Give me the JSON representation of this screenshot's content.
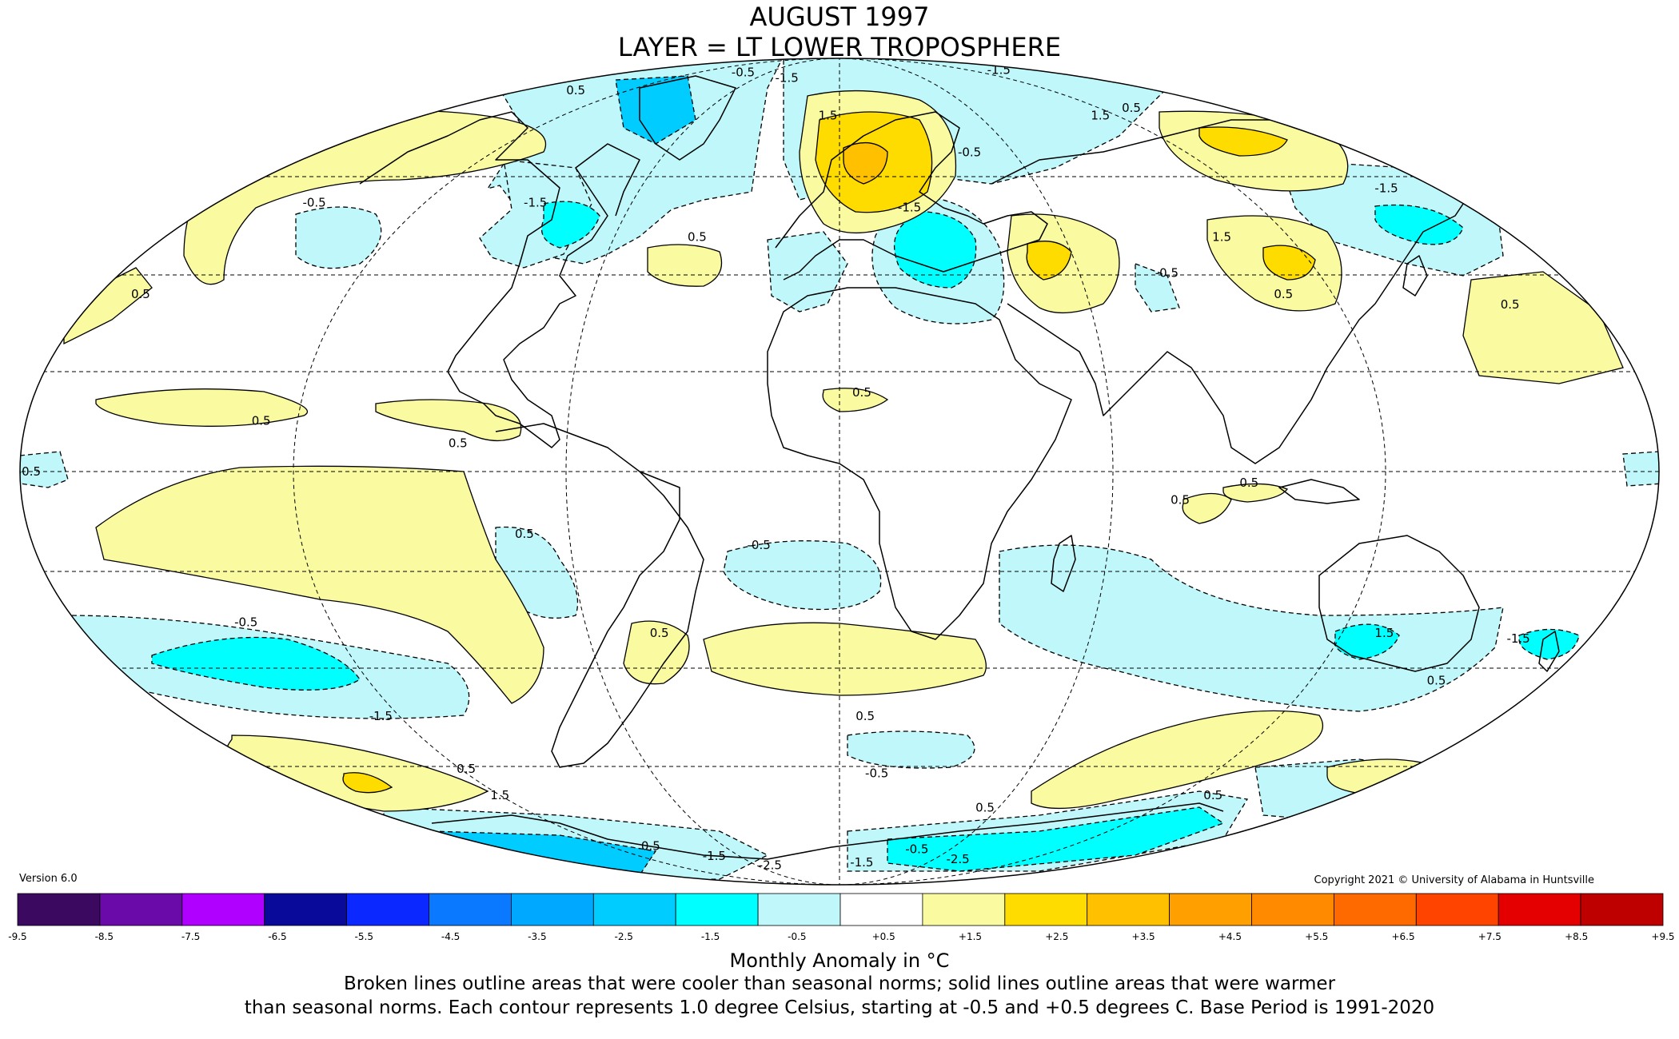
{
  "title": {
    "line1": "AUGUST 1997",
    "line2": "LAYER = LT LOWER TROPOSPHERE"
  },
  "version": "Version 6.0",
  "copyright": "Copyright 2021 © University of Alabama in Huntsville",
  "legend": {
    "units_label": "Monthly Anomaly in °C",
    "description_line1": "Broken lines outline areas that were cooler than seasonal norms; solid lines outline areas that were warmer",
    "description_line2": "than seasonal norms. Each contour represents 1.0 degree Celsius, starting at -0.5 and +0.5 degrees C. Base Period is 1991-2020",
    "ticks": [
      "-9.5",
      "-8.5",
      "-7.5",
      "-6.5",
      "-5.5",
      "-4.5",
      "-3.5",
      "-2.5",
      "-1.5",
      "-0.5",
      "+0.5",
      "+1.5",
      "+2.5",
      "+3.5",
      "+4.5",
      "+5.5",
      "+6.5",
      "+7.5",
      "+8.5",
      "+9.5"
    ],
    "colors": [
      "#3b0a60",
      "#6a0aa8",
      "#b000ff",
      "#0a0a9a",
      "#0a28ff",
      "#0a78ff",
      "#00a8ff",
      "#00ccff",
      "#00ffff",
      "#bff7fa",
      "#ffffff",
      "#fafaa0",
      "#ffdc00",
      "#ffc000",
      "#ffa000",
      "#ff8a00",
      "#ff6a00",
      "#ff4400",
      "#e40000",
      "#bf0000"
    ]
  },
  "map": {
    "contour_labels": [
      {
        "text": "0.5",
        "lon": -150,
        "lat": 77
      },
      {
        "text": "-0.5",
        "lon": -82,
        "lat": 83
      },
      {
        "text": "-1.5",
        "lon": -38,
        "lat": 81
      },
      {
        "text": "1.5",
        "lon": -5,
        "lat": 70
      },
      {
        "text": "-1.5",
        "lon": 150,
        "lat": 84
      },
      {
        "text": "0.5",
        "lon": 135,
        "lat": 72
      },
      {
        "text": "1.5",
        "lon": 113,
        "lat": 70
      },
      {
        "text": "-0.5",
        "lon": 45,
        "lat": 61
      },
      {
        "text": "-0.5",
        "lon": -152,
        "lat": 50
      },
      {
        "text": "-1.5",
        "lon": -88,
        "lat": 50
      },
      {
        "text": "-1.5",
        "lon": 165,
        "lat": 53
      },
      {
        "text": "0.5",
        "lon": -38,
        "lat": 43
      },
      {
        "text": "-1.5",
        "lon": 20,
        "lat": 49
      },
      {
        "text": "1.5",
        "lon": 102,
        "lat": 43
      },
      {
        "text": "0.5",
        "lon": 108,
        "lat": 32
      },
      {
        "text": "-0.5",
        "lon": 82,
        "lat": 36
      },
      {
        "text": "0.5",
        "lon": 161,
        "lat": 30
      },
      {
        "text": "0.5",
        "lon": -170,
        "lat": 32
      },
      {
        "text": "0.5",
        "lon": -128,
        "lat": 9
      },
      {
        "text": "0.5",
        "lon": -84,
        "lat": 5
      },
      {
        "text": "0.5",
        "lon": 5,
        "lat": 14
      },
      {
        "text": "-0.5",
        "lon": -178,
        "lat": 0
      },
      {
        "text": "0.5",
        "lon": 90,
        "lat": -2
      },
      {
        "text": "0.5",
        "lon": 75,
        "lat": -5
      },
      {
        "text": "0.5",
        "lon": -70,
        "lat": -11
      },
      {
        "text": "-0.5",
        "lon": -18,
        "lat": -13
      },
      {
        "text": "-0.5",
        "lon": -140,
        "lat": -27
      },
      {
        "text": "0.5",
        "lon": -43,
        "lat": -29
      },
      {
        "text": "-1.5",
        "lon": -125,
        "lat": -45
      },
      {
        "text": "0.5",
        "lon": 7,
        "lat": -45
      },
      {
        "text": "1.5",
        "lon": 130,
        "lat": -29
      },
      {
        "text": "-1.5",
        "lon": 163,
        "lat": -30
      },
      {
        "text": "0.5",
        "lon": 152,
        "lat": -38
      },
      {
        "text": "-0.5",
        "lon": 12,
        "lat": -57
      },
      {
        "text": "0.5",
        "lon": -118,
        "lat": -56
      },
      {
        "text": "1.5",
        "lon": -120,
        "lat": -62
      },
      {
        "text": "0.5",
        "lon": 55,
        "lat": -65
      },
      {
        "text": "0.5",
        "lon": 132,
        "lat": -62
      },
      {
        "text": "0.5",
        "lon": -98,
        "lat": -75
      },
      {
        "text": "-1.5",
        "lon": -75,
        "lat": -78
      },
      {
        "text": "-2.5",
        "lon": -50,
        "lat": -81
      },
      {
        "text": "-1.5",
        "lon": 15,
        "lat": -80
      },
      {
        "text": "-0.5",
        "lon": 42,
        "lat": -76
      },
      {
        "text": "-2.5",
        "lon": 75,
        "lat": -79
      }
    ]
  }
}
